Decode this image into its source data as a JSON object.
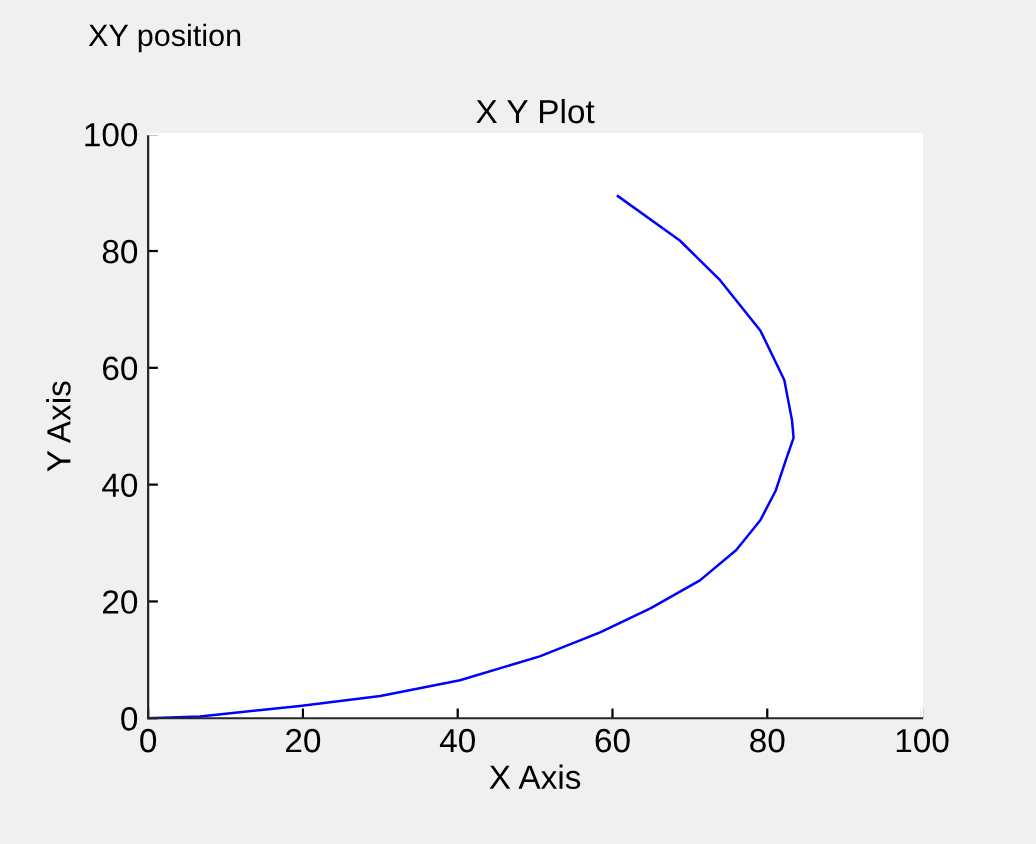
{
  "chart_data": {
    "type": "line",
    "title": "X Y Plot",
    "xlabel": "X Axis",
    "ylabel": "Y Axis",
    "annotations": [
      "XY position"
    ],
    "x": [
      0,
      6.7,
      19.6,
      30,
      40.3,
      50.6,
      58.4,
      64.9,
      71.3,
      76,
      79.1,
      81.1,
      82.4,
      83.4,
      83.2,
      82.2,
      79.1,
      73.9,
      68.7,
      60.7
    ],
    "series": [
      {
        "color": "#0000ff",
        "values": [
          0,
          0.3,
          2.1,
          3.8,
          6.5,
          10.6,
          14.7,
          18.8,
          23.6,
          28.8,
          33.9,
          39,
          44.2,
          48,
          51,
          57.9,
          66.4,
          75,
          81.8,
          89.4
        ]
      }
    ],
    "xlim": [
      0,
      100
    ],
    "ylim": [
      0,
      100
    ],
    "xticks": [
      0,
      20,
      40,
      60,
      80,
      100
    ],
    "yticks": [
      0,
      20,
      40,
      60,
      80,
      100
    ],
    "grid": false,
    "legend": false,
    "marker": "none",
    "line_style": "solid"
  }
}
